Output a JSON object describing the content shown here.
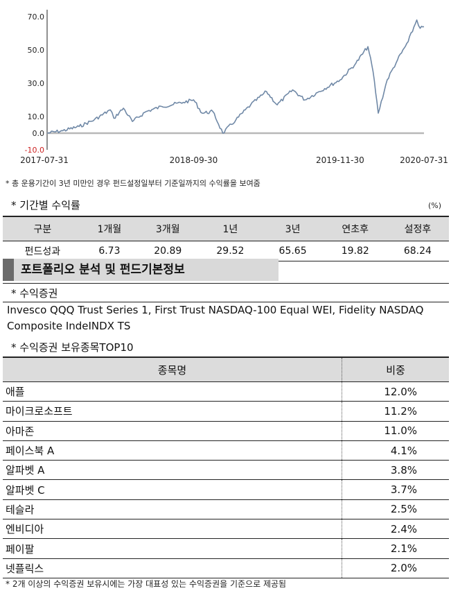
{
  "chart_data": {
    "type": "line",
    "x_ticks": [
      "2017-07-31",
      "2018-09-30",
      "2019-11-30",
      "2020-07-31"
    ],
    "y_ticks": [
      "70.0",
      "50.0",
      "30.0",
      "10.0",
      "0.0",
      "-10.0"
    ],
    "ylim": [
      -10,
      72
    ],
    "series": [
      {
        "points": [
          [
            "2017-07-31",
            0
          ],
          [
            "2017-09-15",
            1.5
          ],
          [
            "2017-11-01",
            4
          ],
          [
            "2017-12-15",
            8
          ],
          [
            "2018-01-31",
            14
          ],
          [
            "2018-02-10",
            9
          ],
          [
            "2018-03-10",
            15
          ],
          [
            "2018-04-05",
            7
          ],
          [
            "2018-05-15",
            13
          ],
          [
            "2018-06-30",
            16
          ],
          [
            "2018-08-31",
            18.5
          ],
          [
            "2018-09-30",
            20
          ],
          [
            "2018-10-25",
            12
          ],
          [
            "2018-11-25",
            13
          ],
          [
            "2018-12-24",
            0
          ],
          [
            "2019-01-31",
            8
          ],
          [
            "2019-03-15",
            17
          ],
          [
            "2019-04-30",
            25
          ],
          [
            "2019-05-31",
            17
          ],
          [
            "2019-07-15",
            26
          ],
          [
            "2019-08-20",
            20
          ],
          [
            "2019-09-30",
            25
          ],
          [
            "2019-11-30",
            32
          ],
          [
            "2020-01-15",
            42
          ],
          [
            "2020-02-19",
            52
          ],
          [
            "2020-03-05",
            37
          ],
          [
            "2020-03-20",
            12
          ],
          [
            "2020-04-15",
            32
          ],
          [
            "2020-05-15",
            44
          ],
          [
            "2020-06-15",
            55
          ],
          [
            "2020-07-10",
            68
          ],
          [
            "2020-07-20",
            63
          ],
          [
            "2020-07-31",
            64
          ]
        ],
        "color": "#6f88a6"
      }
    ],
    "baseline": 0,
    "baseline_color": "#b8b8b8"
  },
  "note": "* 총 운용기간이 3년 미만인 경우 펀드설정일부터 기준일까지의 수익률을 보여줌",
  "performance": {
    "title": "* 기간별 수익률",
    "unit": "(%)",
    "headers": [
      "구분",
      "1개월",
      "3개월",
      "1년",
      "3년",
      "연초후",
      "설정후"
    ],
    "row": [
      "펀드성과",
      "6.73",
      "20.89",
      "29.52",
      "65.65",
      "19.82",
      "68.24"
    ]
  },
  "portfolio_banner": "포트폴리오 분석 및 펀드기본정보",
  "assets": {
    "title": "* 수익증권",
    "text": "Invesco QQQ Trust Series 1, First Trust NASDAQ-100 Equal WEI, Fidelity NASDAQ Composite IndeINDX TS"
  },
  "holdings": {
    "title": "* 수익증권 보유종목TOP10",
    "headers": [
      "종목명",
      "비중"
    ],
    "rows": [
      [
        "애플",
        "12.0%"
      ],
      [
        "마이크로소프트",
        "11.2%"
      ],
      [
        "아마존",
        "11.0%"
      ],
      [
        "페이스북 A",
        "4.1%"
      ],
      [
        "알파벳 A",
        "3.8%"
      ],
      [
        "알파벳 C",
        "3.7%"
      ],
      [
        "테슬라",
        "2.5%"
      ],
      [
        "엔비디아",
        "2.4%"
      ],
      [
        "페이팔",
        "2.1%"
      ],
      [
        "넷플릭스",
        "2.0%"
      ]
    ]
  },
  "footnote": "* 2개 이상의 수익증권 보유시에는 가장 대표성 있는 수익증권을 기준으로 제공됨"
}
